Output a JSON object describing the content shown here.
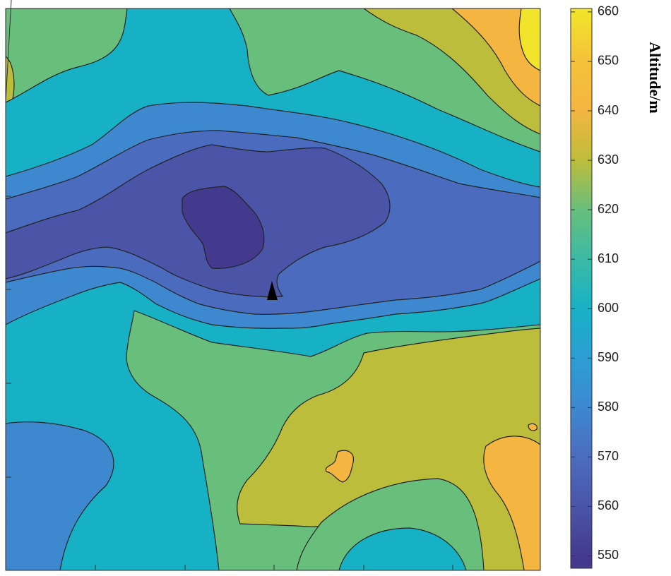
{
  "chart_data": {
    "type": "contour",
    "colorbar": {
      "label": "Altitude/m",
      "lim": [
        547.5,
        660.7
      ],
      "ticks": [
        550,
        560,
        570,
        580,
        590,
        600,
        610,
        620,
        630,
        640,
        650,
        660
      ],
      "colors": [
        "#433a8e",
        "#4a55a8",
        "#4b6cbe",
        "#3d88cf",
        "#2c9ed4",
        "#17b1c6",
        "#3bbaa5",
        "#68bf7c",
        "#bdbd3c",
        "#f4b640",
        "#f5c13a",
        "#f2e42b"
      ]
    }
  }
}
